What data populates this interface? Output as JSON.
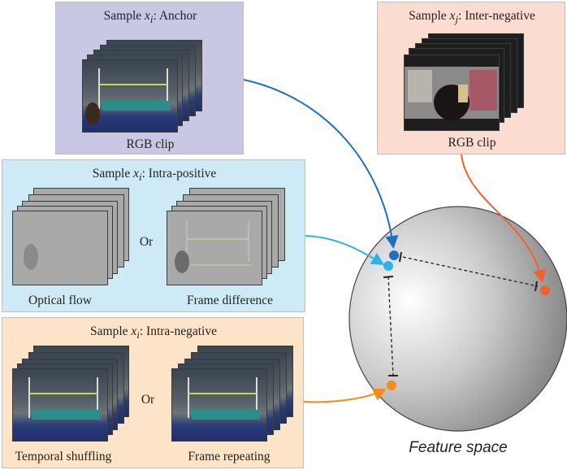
{
  "anchor": {
    "title_prefix": "Sample ",
    "title_var": "x",
    "title_sub": "i",
    "title_suffix": ": Anchor",
    "caption": "RGB clip",
    "bg": "#c8c8e4"
  },
  "inter_negative": {
    "title_prefix": "Sample ",
    "title_var": "x",
    "title_sub": "j",
    "title_suffix": ": Inter-negative",
    "caption": "RGB clip",
    "bg": "#fbdcd0"
  },
  "intra_positive": {
    "title_prefix": "Sample ",
    "title_var": "x",
    "title_sub": "i",
    "title_suffix": ": Intra-positive",
    "left_caption": "Optical flow",
    "or_label": "Or",
    "right_caption": "Frame difference",
    "bg": "#cdeaf6"
  },
  "intra_negative": {
    "title_prefix": "Sample ",
    "title_var": "x",
    "title_sub": "i",
    "title_suffix": ": Intra-negative",
    "left_caption": "Temporal shuffling",
    "or_label": "Or",
    "right_caption": "Frame repeating",
    "bg": "#fde3c8"
  },
  "feature_space": {
    "label": "Feature space"
  },
  "colors": {
    "anchor_point": "#1f6fc2",
    "positive_point": "#2fb2e6",
    "inter_negative_point": "#f0622b",
    "intra_negative_point": "#f28c1e"
  }
}
